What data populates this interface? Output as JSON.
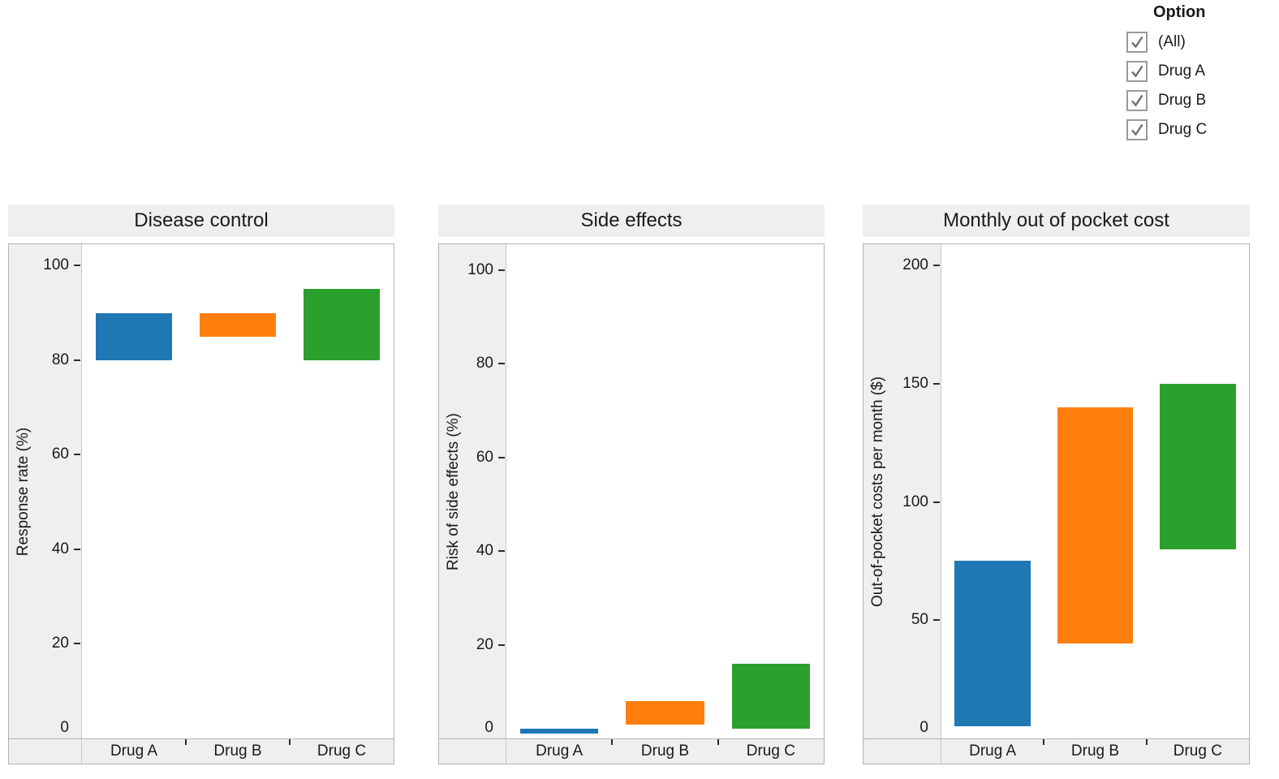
{
  "filter_panel": {
    "title": "Option",
    "options": [
      {
        "label": "(All)",
        "checked": true
      },
      {
        "label": "Drug A",
        "checked": true
      },
      {
        "label": "Drug B",
        "checked": true
      },
      {
        "label": "Drug C",
        "checked": true
      }
    ]
  },
  "palette": {
    "drug_a": "#1f77b4",
    "drug_b": "#ff7f0e",
    "drug_c": "#2ca02c",
    "header_bg": "#efefef",
    "panel_border": "#b2b2b2"
  },
  "chart_data": [
    {
      "type": "bar",
      "subtype": "floating-range-bars",
      "title": "Disease control",
      "ylabel": "Response rate (%)",
      "xlabel": "",
      "categories": [
        "Drug A",
        "Drug B",
        "Drug C"
      ],
      "ranges": [
        {
          "category": "Drug A",
          "min": 80,
          "max": 90,
          "color": "#1f77b4"
        },
        {
          "category": "Drug B",
          "min": 85,
          "max": 90,
          "color": "#ff7f0e"
        },
        {
          "category": "Drug C",
          "min": 80,
          "max": 95,
          "color": "#2ca02c"
        }
      ],
      "yticks": [
        0,
        20,
        40,
        60,
        80,
        100
      ],
      "ylim": [
        0,
        104.5
      ],
      "grid": false,
      "legend": "none"
    },
    {
      "type": "bar",
      "subtype": "floating-range-bars",
      "title": "Side effects",
      "ylabel": "Risk of side effects (%)",
      "xlabel": "",
      "categories": [
        "Drug A",
        "Drug B",
        "Drug C"
      ],
      "ranges": [
        {
          "category": "Drug A",
          "min": 1,
          "max": 2,
          "color": "#1f77b4"
        },
        {
          "category": "Drug B",
          "min": 3,
          "max": 8,
          "color": "#ff7f0e"
        },
        {
          "category": "Drug C",
          "min": 2,
          "max": 16,
          "color": "#2ca02c"
        }
      ],
      "yticks": [
        0,
        20,
        40,
        60,
        80,
        100
      ],
      "ylim": [
        0,
        105.5
      ],
      "grid": false,
      "legend": "none"
    },
    {
      "type": "bar",
      "subtype": "floating-range-bars",
      "title": "Monthly out of pocket cost",
      "ylabel": "Out-of-pocket costs per month ($)",
      "xlabel": "",
      "categories": [
        "Drug A",
        "Drug B",
        "Drug C"
      ],
      "ranges": [
        {
          "category": "Drug A",
          "min": 5,
          "max": 75,
          "color": "#1f77b4"
        },
        {
          "category": "Drug B",
          "min": 40,
          "max": 140,
          "color": "#ff7f0e"
        },
        {
          "category": "Drug C",
          "min": 80,
          "max": 150,
          "color": "#2ca02c"
        }
      ],
      "yticks": [
        0,
        50,
        100,
        150,
        200
      ],
      "ylim": [
        0,
        209
      ],
      "grid": false,
      "legend": "none"
    }
  ]
}
